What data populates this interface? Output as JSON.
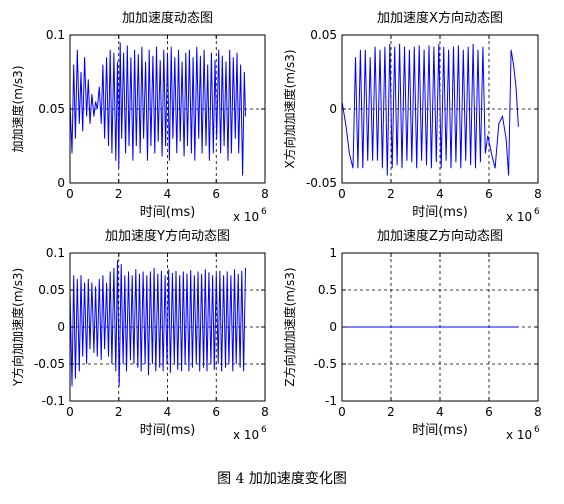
{
  "figure_caption": "图 4  加加速度变化图",
  "chart_data": [
    {
      "type": "line",
      "title": "加加速度动态图",
      "xlabel": "时间(ms)",
      "ylabel": "加加速度(m/s3)",
      "x_multiplier": "x 10",
      "x_exponent": "6",
      "xlim": [
        0,
        8
      ],
      "ylim": [
        0,
        0.1
      ],
      "xticks": [
        0,
        2,
        4,
        6,
        8
      ],
      "xtick_labels": [
        "0",
        "2",
        "4",
        "6",
        "8"
      ],
      "yticks": [
        0,
        0.05,
        0.1
      ],
      "ytick_labels": [
        "0",
        "0.05",
        "0.1"
      ],
      "grid": true,
      "line_color": "#0000ff",
      "series": [
        {
          "x": [
            0.0,
            0.08,
            0.15,
            0.22,
            0.3,
            0.38,
            0.45,
            0.52,
            0.6,
            0.68,
            0.75,
            0.82,
            0.9,
            0.98,
            1.05,
            1.12,
            1.2,
            1.28,
            1.35,
            1.42,
            1.5,
            1.58,
            1.65,
            1.72,
            1.8,
            1.88,
            1.95,
            2.0,
            2.06,
            2.12,
            2.2,
            2.28,
            2.35,
            2.42,
            2.5,
            2.58,
            2.65,
            2.72,
            2.8,
            2.88,
            2.95,
            3.02,
            3.1,
            3.18,
            3.25,
            3.32,
            3.4,
            3.48,
            3.55,
            3.62,
            3.7,
            3.78,
            3.85,
            3.92,
            4.0,
            4.08,
            4.15,
            4.22,
            4.3,
            4.38,
            4.45,
            4.52,
            4.6,
            4.68,
            4.75,
            4.82,
            4.9,
            4.98,
            5.05,
            5.12,
            5.2,
            5.28,
            5.35,
            5.42,
            5.5,
            5.58,
            5.65,
            5.72,
            5.8,
            5.88,
            5.95,
            6.02,
            6.1,
            6.18,
            6.25,
            6.32,
            6.4,
            6.48,
            6.55,
            6.62,
            6.7,
            6.78,
            6.85,
            6.92,
            7.0,
            7.08,
            7.15,
            7.2
          ],
          "y": [
            0.055,
            0.02,
            0.08,
            0.03,
            0.09,
            0.04,
            0.075,
            0.035,
            0.085,
            0.045,
            0.07,
            0.04,
            0.06,
            0.045,
            0.055,
            0.05,
            0.065,
            0.04,
            0.08,
            0.03,
            0.085,
            0.025,
            0.09,
            0.02,
            0.088,
            0.015,
            0.082,
            0.01,
            0.095,
            0.03,
            0.088,
            0.02,
            0.093,
            0.025,
            0.085,
            0.015,
            0.09,
            0.025,
            0.087,
            0.02,
            0.092,
            0.03,
            0.082,
            0.015,
            0.09,
            0.025,
            0.086,
            0.02,
            0.092,
            0.028,
            0.083,
            0.018,
            0.09,
            0.025,
            0.088,
            0.015,
            0.092,
            0.03,
            0.085,
            0.02,
            0.09,
            0.028,
            0.082,
            0.018,
            0.088,
            0.025,
            0.09,
            0.02,
            0.085,
            0.015,
            0.092,
            0.03,
            0.086,
            0.02,
            0.09,
            0.025,
            0.08,
            0.015,
            0.088,
            0.02,
            0.083,
            0.03,
            0.09,
            0.02,
            0.086,
            0.025,
            0.082,
            0.015,
            0.09,
            0.02,
            0.085,
            0.03,
            0.088,
            0.02,
            0.08,
            0.005,
            0.075,
            0.045
          ]
        }
      ]
    },
    {
      "type": "line",
      "title": "加加速度X方向动态图",
      "xlabel": "时间(ms)",
      "ylabel": "X方向加加速度(m/s3)",
      "x_multiplier": "x 10",
      "x_exponent": "6",
      "xlim": [
        0,
        8
      ],
      "ylim": [
        -0.05,
        0.05
      ],
      "xticks": [
        0,
        2,
        4,
        6,
        8
      ],
      "xtick_labels": [
        "0",
        "2",
        "4",
        "6",
        "8"
      ],
      "yticks": [
        -0.05,
        0,
        0.05
      ],
      "ytick_labels": [
        "-0.05",
        "0",
        "0.05"
      ],
      "grid": true,
      "line_color": "#0000ff",
      "series": [
        {
          "x": [
            0.0,
            0.15,
            0.3,
            0.45,
            0.55,
            0.65,
            0.75,
            0.85,
            0.95,
            1.05,
            1.15,
            1.25,
            1.35,
            1.45,
            1.55,
            1.65,
            1.75,
            1.85,
            1.95,
            2.05,
            2.15,
            2.25,
            2.35,
            2.45,
            2.55,
            2.65,
            2.75,
            2.85,
            2.95,
            3.05,
            3.15,
            3.25,
            3.35,
            3.45,
            3.55,
            3.65,
            3.75,
            3.85,
            3.95,
            4.05,
            4.15,
            4.25,
            4.35,
            4.45,
            4.55,
            4.65,
            4.75,
            4.85,
            4.95,
            5.05,
            5.15,
            5.25,
            5.35,
            5.45,
            5.55,
            5.65,
            5.75,
            5.85,
            5.95,
            6.1,
            6.25,
            6.4,
            6.55,
            6.7,
            6.8,
            6.9,
            7.0,
            7.1,
            7.2
          ],
          "y": [
            0.005,
            -0.01,
            -0.03,
            -0.04,
            0.035,
            -0.04,
            0.04,
            -0.04,
            0.04,
            -0.035,
            0.035,
            -0.035,
            0.042,
            -0.035,
            0.04,
            -0.04,
            0.042,
            -0.045,
            0.044,
            -0.04,
            0.042,
            -0.038,
            0.044,
            -0.04,
            0.042,
            -0.035,
            0.04,
            -0.036,
            0.042,
            -0.04,
            0.043,
            -0.035,
            0.04,
            -0.038,
            0.043,
            -0.04,
            0.042,
            -0.036,
            0.044,
            -0.04,
            0.042,
            -0.035,
            0.04,
            -0.04,
            0.042,
            -0.036,
            0.043,
            -0.04,
            0.04,
            -0.035,
            0.042,
            -0.038,
            0.044,
            -0.04,
            0.04,
            -0.036,
            0.042,
            -0.03,
            -0.018,
            -0.03,
            -0.04,
            -0.01,
            -0.005,
            -0.02,
            -0.045,
            0.04,
            0.03,
            0.015,
            -0.012
          ]
        }
      ]
    },
    {
      "type": "line",
      "title": "加加速度Y方向动态图",
      "xlabel": "时间(ms)",
      "ylabel": "Y方向加加速度(m/s3)",
      "x_multiplier": "x 10",
      "x_exponent": "6",
      "xlim": [
        0,
        8
      ],
      "ylim": [
        -0.1,
        0.1
      ],
      "xticks": [
        0,
        2,
        4,
        6,
        8
      ],
      "xtick_labels": [
        "0",
        "2",
        "4",
        "6",
        "8"
      ],
      "yticks": [
        -0.1,
        -0.05,
        0,
        0.05,
        0.1
      ],
      "ytick_labels": [
        "-0.1",
        "-0.05",
        "0",
        "0.05",
        "0.1"
      ],
      "grid": true,
      "line_color": "#0000ff",
      "series": [
        {
          "x": [
            0.0,
            0.08,
            0.15,
            0.22,
            0.3,
            0.38,
            0.45,
            0.52,
            0.6,
            0.68,
            0.75,
            0.82,
            0.9,
            0.98,
            1.05,
            1.12,
            1.2,
            1.28,
            1.35,
            1.42,
            1.5,
            1.58,
            1.65,
            1.72,
            1.8,
            1.88,
            1.95,
            2.02,
            2.1,
            2.18,
            2.25,
            2.32,
            2.4,
            2.48,
            2.55,
            2.62,
            2.7,
            2.78,
            2.85,
            2.92,
            3.0,
            3.08,
            3.15,
            3.22,
            3.3,
            3.38,
            3.45,
            3.52,
            3.6,
            3.68,
            3.75,
            3.82,
            3.9,
            3.98,
            4.05,
            4.12,
            4.2,
            4.28,
            4.35,
            4.42,
            4.5,
            4.58,
            4.65,
            4.72,
            4.8,
            4.88,
            4.95,
            5.02,
            5.1,
            5.18,
            5.25,
            5.32,
            5.4,
            5.48,
            5.55,
            5.62,
            5.7,
            5.78,
            5.85,
            5.92,
            6.0,
            6.08,
            6.15,
            6.22,
            6.3,
            6.38,
            6.45,
            6.52,
            6.6,
            6.68,
            6.75,
            6.82,
            6.9,
            6.98,
            7.05,
            7.12,
            7.2
          ],
          "y": [
            0.05,
            -0.08,
            0.07,
            -0.07,
            0.065,
            -0.06,
            0.07,
            -0.04,
            0.06,
            -0.05,
            0.065,
            -0.03,
            0.06,
            -0.035,
            0.055,
            -0.04,
            0.065,
            -0.045,
            0.07,
            -0.03,
            0.06,
            -0.04,
            0.075,
            -0.05,
            0.08,
            -0.06,
            0.09,
            -0.08,
            0.085,
            -0.05,
            0.07,
            -0.06,
            0.075,
            -0.045,
            0.07,
            -0.05,
            0.078,
            -0.055,
            0.072,
            -0.06,
            0.075,
            -0.05,
            0.07,
            -0.065,
            0.075,
            -0.05,
            0.08,
            -0.06,
            0.072,
            -0.055,
            0.076,
            -0.06,
            0.07,
            -0.05,
            0.078,
            -0.062,
            0.073,
            -0.05,
            0.076,
            -0.058,
            0.07,
            -0.06,
            0.075,
            -0.05,
            0.072,
            -0.06,
            0.077,
            -0.055,
            0.07,
            -0.05,
            0.075,
            -0.06,
            0.072,
            -0.055,
            0.078,
            -0.06,
            0.074,
            -0.05,
            0.07,
            -0.058,
            0.072,
            -0.05,
            0.076,
            -0.06,
            0.07,
            -0.055,
            0.075,
            -0.05,
            0.07,
            -0.06,
            0.078,
            -0.05,
            0.072,
            -0.055,
            0.076,
            -0.06,
            0.08
          ]
        }
      ]
    },
    {
      "type": "line",
      "title": "加加速度Z方向动态图",
      "xlabel": "时间(ms)",
      "ylabel": "Z方向加加速度(m/s3)",
      "x_multiplier": "x 10",
      "x_exponent": "6",
      "xlim": [
        0,
        8
      ],
      "ylim": [
        -1,
        1
      ],
      "xticks": [
        0,
        2,
        4,
        6,
        8
      ],
      "xtick_labels": [
        "0",
        "2",
        "4",
        "6",
        "8"
      ],
      "yticks": [
        -1,
        -0.5,
        0,
        0.5,
        1
      ],
      "ytick_labels": [
        "-1",
        "-0.5",
        "0",
        "0.5",
        "1"
      ],
      "grid": true,
      "line_color": "#0000ff",
      "series": [
        {
          "x": [
            0,
            7.2
          ],
          "y": [
            0,
            0
          ]
        }
      ]
    }
  ]
}
